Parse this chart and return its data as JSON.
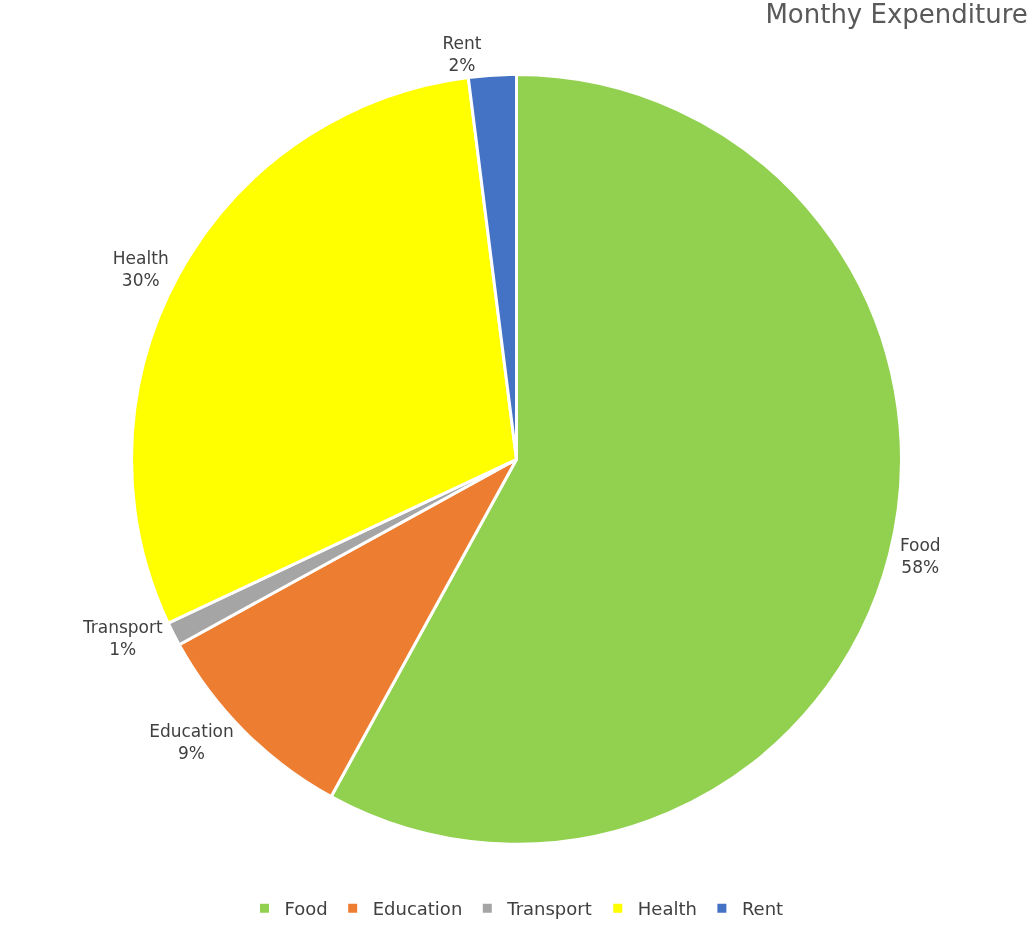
{
  "chart_data": {
    "type": "pie",
    "title": "Monthy Expenditure",
    "categories": [
      "Food",
      "Education",
      "Transport",
      "Health",
      "Rent"
    ],
    "values": [
      58,
      9,
      1,
      30,
      2
    ],
    "value_labels": [
      "58%",
      "9%",
      "1%",
      "30%",
      "2%"
    ],
    "colors": [
      "#92d050",
      "#ed7d31",
      "#a5a5a5",
      "#ffff00",
      "#4472c4"
    ],
    "legend": "bottom"
  }
}
